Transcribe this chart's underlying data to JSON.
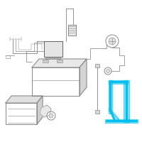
{
  "bg_color": "#ffffff",
  "highlight_color": "#00BFEF",
  "line_color": "#aaaaaa",
  "dark_color": "#666666",
  "edge_color": "#888888",
  "fig_bg": "#ffffff"
}
